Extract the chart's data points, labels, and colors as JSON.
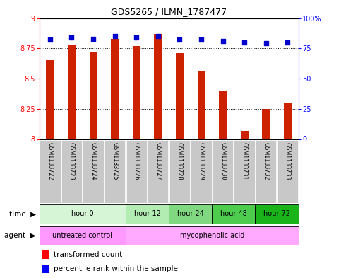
{
  "title": "GDS5265 / ILMN_1787477",
  "samples": [
    "GSM1133722",
    "GSM1133723",
    "GSM1133724",
    "GSM1133725",
    "GSM1133726",
    "GSM1133727",
    "GSM1133728",
    "GSM1133729",
    "GSM1133730",
    "GSM1133731",
    "GSM1133732",
    "GSM1133733"
  ],
  "transformed_counts": [
    8.65,
    8.78,
    8.72,
    8.83,
    8.77,
    8.87,
    8.71,
    8.56,
    8.4,
    8.07,
    8.25,
    8.3
  ],
  "percentile_ranks": [
    82,
    84,
    83,
    85,
    84,
    85,
    82,
    82,
    81,
    80,
    79,
    80
  ],
  "y_min": 8.0,
  "y_max": 9.0,
  "y_ticks": [
    8.0,
    8.25,
    8.5,
    8.75,
    9.0
  ],
  "y_tick_labels": [
    "8",
    "8.25",
    "8.5",
    "8.75",
    "9"
  ],
  "y2_ticks": [
    0,
    25,
    50,
    75,
    100
  ],
  "y2_tick_labels": [
    "0",
    "25",
    "50",
    "75",
    "100%"
  ],
  "dotted_lines": [
    8.25,
    8.5,
    8.75
  ],
  "time_groups": [
    {
      "label": "hour 0",
      "start": 0,
      "end": 4,
      "color": "#d6f5d6"
    },
    {
      "label": "hour 12",
      "start": 4,
      "end": 6,
      "color": "#b3ecb3"
    },
    {
      "label": "hour 24",
      "start": 6,
      "end": 8,
      "color": "#80d980"
    },
    {
      "label": "hour 48",
      "start": 8,
      "end": 10,
      "color": "#4dcc4d"
    },
    {
      "label": "hour 72",
      "start": 10,
      "end": 12,
      "color": "#1ab31a"
    }
  ],
  "agent_groups": [
    {
      "label": "untreated control",
      "start": 0,
      "end": 4,
      "color": "#ff99ff"
    },
    {
      "label": "mycophenolic acid",
      "start": 4,
      "end": 12,
      "color": "#ffaaff"
    }
  ],
  "bar_color": "#cc2200",
  "dot_color": "#0000cc",
  "sample_bg_color": "#c8c8c8",
  "legend_red_label": "transformed count",
  "legend_blue_label": "percentile rank within the sample"
}
